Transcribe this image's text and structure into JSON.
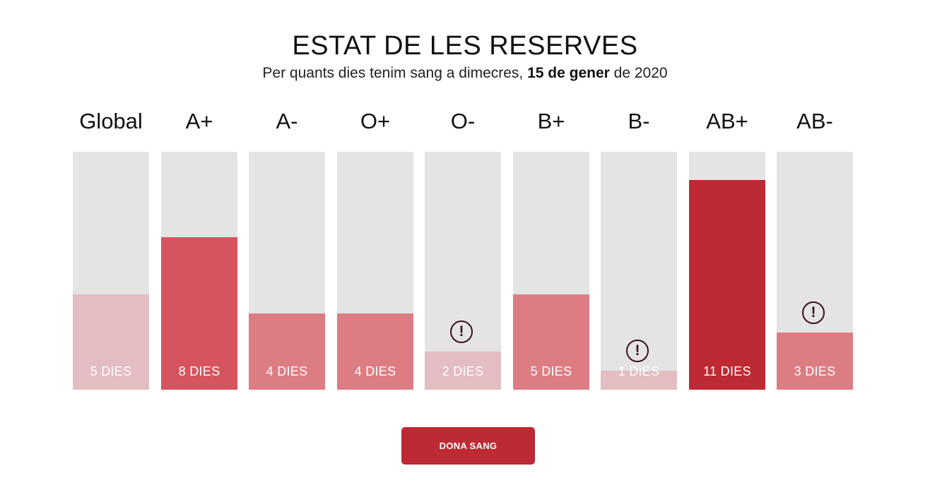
{
  "header": {
    "title": "ESTAT DE LES RESERVES",
    "subtitle_prefix": "Per quants dies tenim sang a dimecres, ",
    "subtitle_bold": "15 de gener",
    "subtitle_suffix": " de 2020"
  },
  "chart_data": {
    "type": "bar",
    "orientation": "vertical",
    "categories": [
      "Global",
      "A+",
      "A-",
      "O+",
      "O-",
      "B+",
      "B-",
      "AB+",
      "AB-"
    ],
    "values": [
      5,
      8,
      4,
      4,
      2,
      5,
      1,
      11,
      3
    ],
    "value_labels": [
      "5 DIES",
      "8 DIES",
      "4 DIES",
      "4 DIES",
      "2 DIES",
      "5 DIES",
      "1 DIES",
      "11 DIES",
      "3 DIES"
    ],
    "ylim": [
      0,
      12.5
    ],
    "grid": false,
    "warnings": [
      false,
      false,
      false,
      false,
      true,
      false,
      true,
      false,
      true
    ],
    "colors": [
      "#e3bdc1",
      "#d6545f",
      "#dc7d83",
      "#dc7d83",
      "#e3bdc1",
      "#dc7d83",
      "#e3bdc1",
      "#be2a33",
      "#dc7d83"
    ],
    "track_color": "#e4e4e4",
    "warning_icon": "exclamation-circle-icon"
  },
  "cta": {
    "label": "DONA SANG",
    "color": "#be2a33"
  }
}
